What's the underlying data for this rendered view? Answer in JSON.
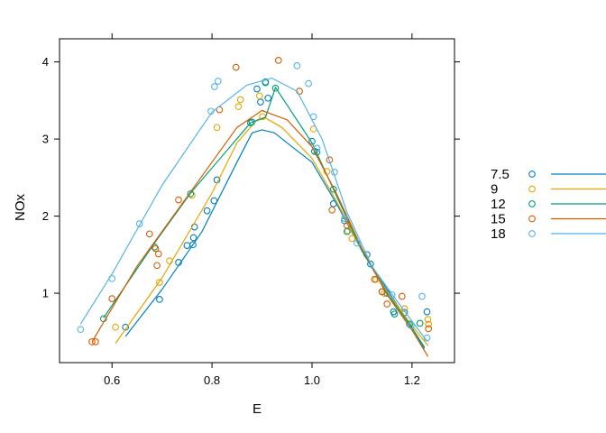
{
  "chart_data": {
    "type": "scatter",
    "title": "",
    "xlabel": "E",
    "ylabel": "NOx",
    "xlim": [
      0.495,
      1.285
    ],
    "ylim": [
      0.1,
      4.3
    ],
    "x_ticks": [
      0.6,
      0.8,
      1.0,
      1.2
    ],
    "y_ticks": [
      1,
      2,
      3,
      4
    ],
    "x_tick_labels": [
      "0.6",
      "0.8",
      "1.0",
      "1.2"
    ],
    "y_tick_labels": [
      "1",
      "2",
      "3",
      "4"
    ],
    "grid": false,
    "legend_position": "right",
    "series": [
      {
        "name": "7.5",
        "color": "#0080c0",
        "points": [
          [
            0.627,
            0.56
          ],
          [
            0.695,
            0.92
          ],
          [
            0.733,
            1.4
          ],
          [
            0.75,
            1.62
          ],
          [
            0.762,
            1.63
          ],
          [
            0.763,
            1.72
          ],
          [
            0.765,
            1.86
          ],
          [
            0.79,
            2.07
          ],
          [
            0.804,
            2.2
          ],
          [
            0.81,
            2.47
          ],
          [
            0.88,
            3.22
          ],
          [
            0.89,
            3.65
          ],
          [
            0.897,
            3.48
          ],
          [
            0.907,
            3.74
          ],
          [
            0.912,
            3.53
          ],
          [
            1.0,
            2.97
          ],
          [
            1.005,
            2.84
          ],
          [
            1.043,
            2.16
          ],
          [
            1.065,
            1.94
          ],
          [
            1.11,
            1.5
          ],
          [
            1.117,
            1.38
          ],
          [
            1.14,
            1.02
          ],
          [
            1.15,
            1.0
          ],
          [
            1.163,
            0.76
          ],
          [
            1.185,
            0.75
          ],
          [
            1.23,
            0.76
          ]
        ],
        "curve": [
          [
            0.627,
            0.44
          ],
          [
            0.7,
            1.05
          ],
          [
            0.78,
            1.8
          ],
          [
            0.85,
            2.7
          ],
          [
            0.88,
            3.08
          ],
          [
            0.9,
            3.12
          ],
          [
            0.925,
            3.08
          ],
          [
            0.96,
            2.9
          ],
          [
            1.0,
            2.7
          ],
          [
            1.05,
            2.15
          ],
          [
            1.1,
            1.55
          ],
          [
            1.15,
            1.05
          ],
          [
            1.2,
            0.55
          ],
          [
            1.225,
            0.28
          ]
        ]
      },
      {
        "name": "9",
        "color": "#e6a500",
        "points": [
          [
            0.607,
            0.56
          ],
          [
            0.695,
            1.14
          ],
          [
            0.715,
            1.42
          ],
          [
            0.76,
            2.27
          ],
          [
            0.81,
            3.15
          ],
          [
            0.853,
            3.42
          ],
          [
            0.857,
            3.51
          ],
          [
            0.895,
            3.56
          ],
          [
            0.901,
            3.29
          ],
          [
            1.003,
            3.13
          ],
          [
            1.03,
            2.58
          ],
          [
            1.072,
            1.81
          ],
          [
            1.08,
            1.71
          ],
          [
            1.128,
            1.18
          ],
          [
            1.145,
            1.0
          ],
          [
            1.185,
            0.8
          ],
          [
            1.232,
            0.66
          ],
          [
            1.233,
            0.6
          ]
        ],
        "curve": [
          [
            0.607,
            0.35
          ],
          [
            0.7,
            1.2
          ],
          [
            0.8,
            2.3
          ],
          [
            0.85,
            2.95
          ],
          [
            0.89,
            3.25
          ],
          [
            0.905,
            3.28
          ],
          [
            0.94,
            3.15
          ],
          [
            1.0,
            2.75
          ],
          [
            1.05,
            2.18
          ],
          [
            1.1,
            1.55
          ],
          [
            1.15,
            1.02
          ],
          [
            1.2,
            0.58
          ],
          [
            1.232,
            0.32
          ]
        ]
      },
      {
        "name": "12",
        "color": "#009e73",
        "points": [
          [
            0.583,
            0.67
          ],
          [
            0.685,
            1.6
          ],
          [
            0.757,
            2.29
          ],
          [
            0.877,
            3.21
          ],
          [
            0.907,
            3.73
          ],
          [
            0.927,
            3.66
          ],
          [
            1.01,
            2.83
          ],
          [
            1.043,
            2.35
          ],
          [
            1.07,
            1.8
          ],
          [
            1.165,
            0.73
          ],
          [
            1.195,
            0.6
          ],
          [
            1.216,
            0.61
          ]
        ],
        "curve": [
          [
            0.583,
            0.68
          ],
          [
            0.685,
            1.65
          ],
          [
            0.757,
            2.3
          ],
          [
            0.877,
            3.21
          ],
          [
            0.907,
            3.28
          ],
          [
            0.927,
            3.67
          ],
          [
            1.0,
            2.95
          ],
          [
            1.05,
            2.25
          ],
          [
            1.1,
            1.55
          ],
          [
            1.15,
            1.0
          ],
          [
            1.2,
            0.55
          ],
          [
            1.225,
            0.3
          ]
        ]
      },
      {
        "name": "15",
        "color": "#d55e00",
        "points": [
          [
            0.56,
            0.37
          ],
          [
            0.567,
            0.37
          ],
          [
            0.6,
            0.93
          ],
          [
            0.675,
            1.77
          ],
          [
            0.687,
            1.58
          ],
          [
            0.69,
            1.36
          ],
          [
            0.693,
            1.51
          ],
          [
            0.733,
            2.21
          ],
          [
            0.815,
            3.38
          ],
          [
            0.848,
            3.93
          ],
          [
            0.933,
            4.02
          ],
          [
            0.975,
            3.62
          ],
          [
            1.035,
            2.73
          ],
          [
            1.04,
            2.08
          ],
          [
            1.07,
            1.88
          ],
          [
            1.125,
            1.18
          ],
          [
            1.14,
            1.02
          ],
          [
            1.15,
            0.86
          ],
          [
            1.18,
            0.96
          ],
          [
            1.233,
            0.54
          ]
        ],
        "curve": [
          [
            0.56,
            0.37
          ],
          [
            0.65,
            1.35
          ],
          [
            0.75,
            2.25
          ],
          [
            0.85,
            3.15
          ],
          [
            0.9,
            3.37
          ],
          [
            0.95,
            3.25
          ],
          [
            1.0,
            2.9
          ],
          [
            1.05,
            2.28
          ],
          [
            1.1,
            1.58
          ],
          [
            1.15,
            0.98
          ],
          [
            1.2,
            0.52
          ],
          [
            1.232,
            0.18
          ]
        ]
      },
      {
        "name": "18",
        "color": "#56b4e9",
        "points": [
          [
            0.537,
            0.53
          ],
          [
            0.6,
            1.19
          ],
          [
            0.655,
            1.9
          ],
          [
            0.798,
            3.36
          ],
          [
            0.805,
            3.68
          ],
          [
            0.812,
            3.75
          ],
          [
            0.97,
            3.95
          ],
          [
            0.993,
            3.72
          ],
          [
            1.003,
            3.29
          ],
          [
            1.01,
            2.88
          ],
          [
            1.045,
            2.57
          ],
          [
            1.065,
            1.97
          ],
          [
            1.09,
            1.65
          ],
          [
            1.16,
            0.98
          ],
          [
            1.198,
            0.58
          ],
          [
            1.22,
            0.96
          ],
          [
            1.23,
            0.42
          ]
        ],
        "curve": [
          [
            0.537,
            0.6
          ],
          [
            0.6,
            1.25
          ],
          [
            0.7,
            2.4
          ],
          [
            0.8,
            3.35
          ],
          [
            0.87,
            3.7
          ],
          [
            0.92,
            3.79
          ],
          [
            0.97,
            3.62
          ],
          [
            1.02,
            3.0
          ],
          [
            1.07,
            2.05
          ],
          [
            1.12,
            1.35
          ],
          [
            1.17,
            0.9
          ],
          [
            1.21,
            0.55
          ],
          [
            1.23,
            0.38
          ]
        ]
      }
    ]
  }
}
